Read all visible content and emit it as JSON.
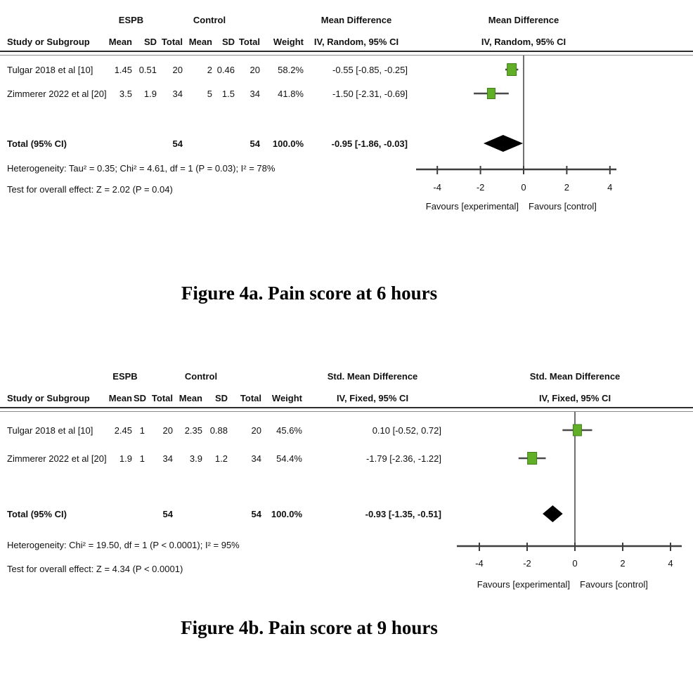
{
  "figures": [
    {
      "caption": "Figure 4a. Pain score at 6 hours",
      "group1": "ESPB",
      "group2": "Control",
      "effect_label": "Mean Difference",
      "method_label": "IV, Random, 95% CI",
      "columns": {
        "study": "Study or Subgroup",
        "mean": "Mean",
        "sd": "SD",
        "total": "Total",
        "mean2": "Mean",
        "sd2": "SD",
        "total2": "Total",
        "weight": "Weight"
      },
      "rows": [
        {
          "study": "Tulgar 2018 et al [10]",
          "mean1": "1.45",
          "sd1": "0.51",
          "total1": "20",
          "mean2": "2",
          "sd2": "0.46",
          "total2": "20",
          "weight": "58.2%",
          "ci": "-0.55 [-0.85, -0.25]"
        },
        {
          "study": "Zimmerer 2022 et al [20]",
          "mean1": "3.5",
          "sd1": "1.9",
          "total1": "34",
          "mean2": "5",
          "sd2": "1.5",
          "total2": "34",
          "weight": "41.8%",
          "ci": "-1.50 [-2.31, -0.69]"
        }
      ],
      "total": {
        "label": "Total (95% CI)",
        "total1": "54",
        "total2": "54",
        "weight": "100.0%",
        "ci": "-0.95 [-1.86, -0.03]"
      },
      "heterogeneity": "Heterogeneity: Tau² = 0.35; Chi² = 4.61, df = 1 (P = 0.03); I² = 78%",
      "overall_effect": "Test for overall effect: Z = 2.02 (P = 0.04)"
    },
    {
      "caption": "Figure 4b. Pain score at 9 hours",
      "group1": "ESPB",
      "group2": "Control",
      "effect_label": "Std. Mean Difference",
      "method_label": "IV, Fixed, 95% CI",
      "columns": {
        "study": "Study or Subgroup",
        "mean": "Mean",
        "sd": "SD",
        "total": "Total",
        "mean2": "Mean",
        "sd2": "SD",
        "total2": "Total",
        "weight": "Weight"
      },
      "rows": [
        {
          "study": "Tulgar 2018 et al [10]",
          "mean1": "2.45",
          "sd1": "1",
          "total1": "20",
          "mean2": "2.35",
          "sd2": "0.88",
          "total2": "20",
          "weight": "45.6%",
          "ci": "0.10 [-0.52, 0.72]"
        },
        {
          "study": "Zimmerer 2022 et al [20]",
          "mean1": "1.9",
          "sd1": "1",
          "total1": "34",
          "mean2": "3.9",
          "sd2": "1.2",
          "total2": "34",
          "weight": "54.4%",
          "ci": "-1.79 [-2.36, -1.22]"
        }
      ],
      "total": {
        "label": "Total (95% CI)",
        "total1": "54",
        "total2": "54",
        "weight": "100.0%",
        "ci": "-0.93 [-1.35, -0.51]"
      },
      "heterogeneity": "Heterogeneity: Chi² = 19.50, df = 1 (P < 0.0001); I² = 95%",
      "overall_effect": "Test for overall effect: Z = 4.34 (P < 0.0001)"
    }
  ],
  "chart_data": [
    {
      "type": "forest",
      "title": "Figure 4a. Pain score at 6 hours",
      "effect_measure": "Mean Difference, IV, Random, 95% CI",
      "studies": [
        {
          "name": "Tulgar 2018 et al [10]",
          "estimate": -0.55,
          "ci_low": -0.85,
          "ci_high": -0.25,
          "weight": 58.2
        },
        {
          "name": "Zimmerer 2022 et al [20]",
          "estimate": -1.5,
          "ci_low": -2.31,
          "ci_high": -0.69,
          "weight": 41.8
        }
      ],
      "total": {
        "estimate": -0.95,
        "ci_low": -1.86,
        "ci_high": -0.03
      },
      "x_ticks": [
        -4,
        -2,
        0,
        2,
        4
      ],
      "xlim": [
        -5,
        5
      ],
      "x_axis_labels": {
        "left": "Favours [experimental]",
        "right": "Favours [control]"
      },
      "marker_color": "#61ae27",
      "marker_edge_color": "#3e7d19",
      "diamond_color": "#000000"
    },
    {
      "type": "forest",
      "title": "Figure 4b. Pain score at 9 hours",
      "effect_measure": "Std. Mean Difference, IV, Fixed, 95% CI",
      "studies": [
        {
          "name": "Tulgar 2018 et al [10]",
          "estimate": 0.1,
          "ci_low": -0.52,
          "ci_high": 0.72,
          "weight": 45.6
        },
        {
          "name": "Zimmerer 2022 et al [20]",
          "estimate": -1.79,
          "ci_low": -2.36,
          "ci_high": -1.22,
          "weight": 54.4
        }
      ],
      "total": {
        "estimate": -0.93,
        "ci_low": -1.35,
        "ci_high": -0.51
      },
      "x_ticks": [
        -4,
        -2,
        0,
        2,
        4
      ],
      "xlim": [
        -5,
        5
      ],
      "x_axis_labels": {
        "left": "Favours [experimental]",
        "right": "Favours [control]"
      },
      "marker_color": "#61ae27",
      "marker_edge_color": "#3e7d19",
      "diamond_color": "#000000"
    }
  ]
}
